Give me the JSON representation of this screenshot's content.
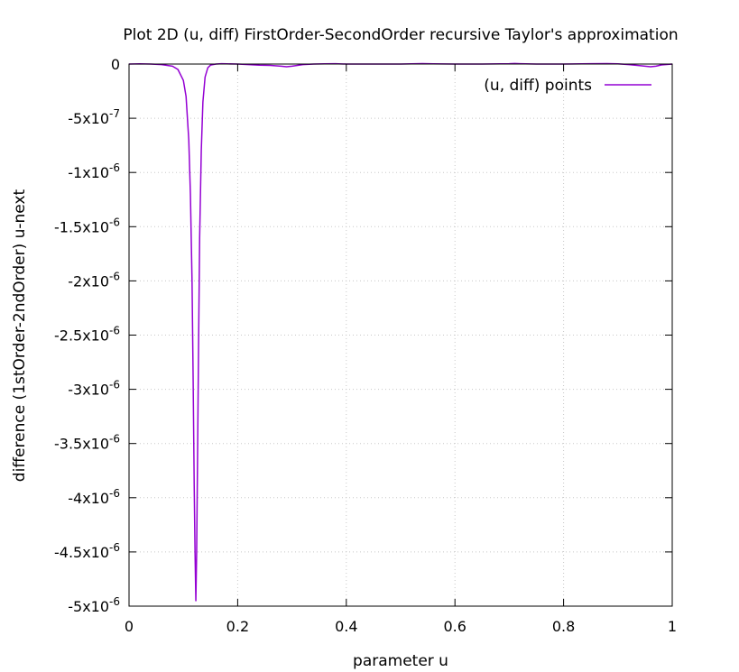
{
  "chart_data": {
    "type": "line",
    "title": "Plot 2D (u, diff) FirstOrder-SecondOrder recursive Taylor's approximation",
    "xlabel": "parameter u",
    "ylabel": "difference (1stOrder-2ndOrder) u-next",
    "xlim": [
      0,
      1
    ],
    "ylim": [
      -5e-06,
      0
    ],
    "grid": true,
    "legend_position": "top-right",
    "x_ticks": [
      {
        "value": 0,
        "label": "0"
      },
      {
        "value": 0.2,
        "label": "0.2"
      },
      {
        "value": 0.4,
        "label": "0.4"
      },
      {
        "value": 0.6,
        "label": "0.6"
      },
      {
        "value": 0.8,
        "label": "0.8"
      },
      {
        "value": 1,
        "label": "1"
      }
    ],
    "y_ticks": [
      {
        "value": 0,
        "mant": "0",
        "exp": ""
      },
      {
        "value": -5e-07,
        "mant": "-5x10",
        "exp": "-7"
      },
      {
        "value": -1e-06,
        "mant": "-1x10",
        "exp": "-6"
      },
      {
        "value": -1.5e-06,
        "mant": "-1.5x10",
        "exp": "-6"
      },
      {
        "value": -2e-06,
        "mant": "-2x10",
        "exp": "-6"
      },
      {
        "value": -2.5e-06,
        "mant": "-2.5x10",
        "exp": "-6"
      },
      {
        "value": -3e-06,
        "mant": "-3x10",
        "exp": "-6"
      },
      {
        "value": -3.5e-06,
        "mant": "-3.5x10",
        "exp": "-6"
      },
      {
        "value": -4e-06,
        "mant": "-4x10",
        "exp": "-6"
      },
      {
        "value": -4.5e-06,
        "mant": "-4.5x10",
        "exp": "-6"
      },
      {
        "value": -5e-06,
        "mant": "-5x10",
        "exp": "-6"
      }
    ],
    "series": [
      {
        "name": "(u, diff) points",
        "color": "#9400d3",
        "x": [
          0,
          0.02,
          0.04,
          0.06,
          0.08,
          0.09,
          0.1,
          0.105,
          0.11,
          0.113,
          0.116,
          0.118,
          0.12,
          0.1215,
          0.123,
          0.1245,
          0.126,
          0.128,
          0.13,
          0.133,
          0.136,
          0.14,
          0.145,
          0.15,
          0.16,
          0.17,
          0.18,
          0.2,
          0.22,
          0.24,
          0.26,
          0.28,
          0.29,
          0.3,
          0.32,
          0.34,
          0.36,
          0.38,
          0.4,
          0.45,
          0.5,
          0.52,
          0.54,
          0.56,
          0.6,
          0.65,
          0.7,
          0.71,
          0.72,
          0.75,
          0.8,
          0.85,
          0.88,
          0.9,
          0.92,
          0.94,
          0.96,
          0.97,
          0.98,
          1.0
        ],
        "y": [
          0,
          2e-09,
          0,
          -5e-09,
          -2e-08,
          -5e-08,
          -1.5e-07,
          -3e-07,
          -7e-07,
          -1.2e-06,
          -2e-06,
          -2.9e-06,
          -3.9e-06,
          -4.5e-06,
          -4.95e-06,
          -4.5e-06,
          -3.7e-06,
          -2.6e-06,
          -1.6e-06,
          -8e-07,
          -3.5e-07,
          -1.2e-07,
          -3.5e-08,
          -1e-08,
          0,
          3e-09,
          2e-09,
          0,
          -5e-09,
          -1e-08,
          -1.2e-08,
          -2e-08,
          -2.5e-08,
          -2e-08,
          -5e-09,
          0,
          2e-09,
          3e-09,
          0,
          0,
          0,
          2e-09,
          4e-09,
          2e-09,
          0,
          0,
          3e-09,
          5e-09,
          3e-09,
          0,
          0,
          3e-09,
          4e-09,
          2e-09,
          -5e-09,
          -1.5e-08,
          -2.5e-08,
          -2e-08,
          -8e-09,
          0
        ]
      }
    ]
  }
}
